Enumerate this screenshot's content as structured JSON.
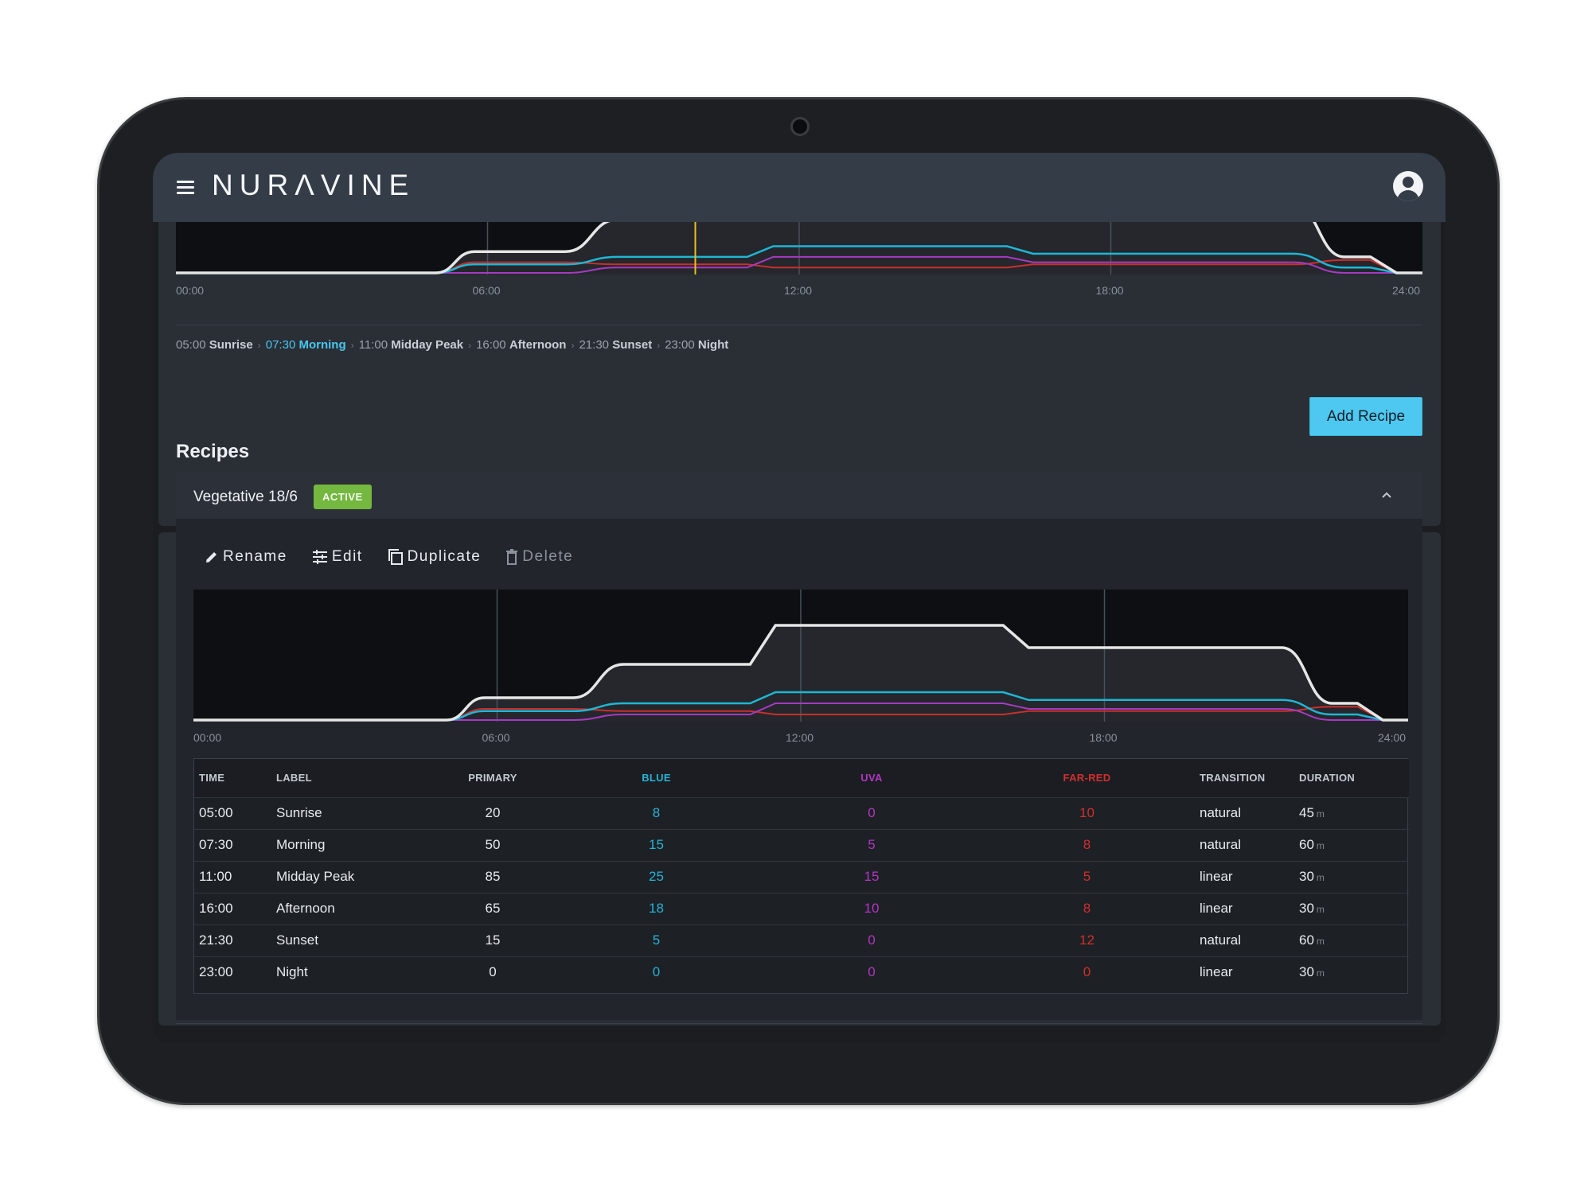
{
  "app": {
    "logo": "NURΛVINE"
  },
  "top_chart": {
    "ticks": [
      "00:00",
      "06:00",
      "12:00",
      "18:00",
      "24:00"
    ]
  },
  "phases": [
    {
      "time": "05:00",
      "label": "Sunrise",
      "active": false
    },
    {
      "time": "07:30",
      "label": "Morning",
      "active": true
    },
    {
      "time": "11:00",
      "label": "Midday Peak",
      "active": false
    },
    {
      "time": "16:00",
      "label": "Afternoon",
      "active": false
    },
    {
      "time": "21:30",
      "label": "Sunset",
      "active": false
    },
    {
      "time": "23:00",
      "label": "Night",
      "active": false
    }
  ],
  "recipes": {
    "title": "Recipes",
    "add_label": "Add Recipe",
    "recipe_name": "Vegetative 18/6",
    "badge": "ACTIVE",
    "actions": {
      "rename": "Rename",
      "edit": "Edit",
      "duplicate": "Duplicate",
      "delete": "Delete"
    }
  },
  "colors": {
    "primary": "#e6e6e6",
    "blue": "#1fb6d4",
    "uva": "#a53bc2",
    "far_red": "#c8302c",
    "marker": "#e8c020"
  },
  "chart_data": {
    "type": "line",
    "x_unit": "hours",
    "xlim": [
      0,
      24
    ],
    "ylim": [
      0,
      100
    ],
    "tick_labels": [
      "00:00",
      "06:00",
      "12:00",
      "18:00",
      "24:00"
    ],
    "current_time_marker": "10:00",
    "points": [
      {
        "time": "05:00",
        "primary": 20,
        "blue": 8,
        "uva": 0,
        "far_red": 10,
        "transition": "natural",
        "duration": 45
      },
      {
        "time": "07:30",
        "primary": 50,
        "blue": 15,
        "uva": 5,
        "far_red": 8,
        "transition": "natural",
        "duration": 60
      },
      {
        "time": "11:00",
        "primary": 85,
        "blue": 25,
        "uva": 15,
        "far_red": 5,
        "transition": "linear",
        "duration": 30
      },
      {
        "time": "16:00",
        "primary": 65,
        "blue": 18,
        "uva": 10,
        "far_red": 8,
        "transition": "linear",
        "duration": 30
      },
      {
        "time": "21:30",
        "primary": 15,
        "blue": 5,
        "uva": 0,
        "far_red": 12,
        "transition": "natural",
        "duration": 60
      },
      {
        "time": "23:00",
        "primary": 0,
        "blue": 0,
        "uva": 0,
        "far_red": 0,
        "transition": "linear",
        "duration": 30
      }
    ]
  },
  "table": {
    "headers": [
      "TIME",
      "LABEL",
      "PRIMARY",
      "BLUE",
      "UVA",
      "FAR-RED",
      "TRANSITION",
      "DURATION"
    ],
    "unit": "m",
    "rows": [
      [
        "05:00",
        "Sunrise",
        "20",
        "8",
        "0",
        "10",
        "natural",
        "45"
      ],
      [
        "07:30",
        "Morning",
        "50",
        "15",
        "5",
        "8",
        "natural",
        "60"
      ],
      [
        "11:00",
        "Midday Peak",
        "85",
        "25",
        "15",
        "5",
        "linear",
        "30"
      ],
      [
        "16:00",
        "Afternoon",
        "65",
        "18",
        "10",
        "8",
        "linear",
        "30"
      ],
      [
        "21:30",
        "Sunset",
        "15",
        "5",
        "0",
        "12",
        "natural",
        "60"
      ],
      [
        "23:00",
        "Night",
        "0",
        "0",
        "0",
        "0",
        "linear",
        "30"
      ]
    ]
  }
}
